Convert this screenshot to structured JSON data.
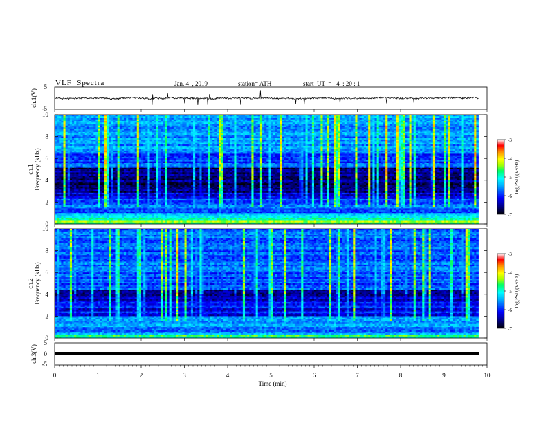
{
  "header": {
    "title": "VLF  Spectra",
    "date": "Jan. 4  , 2019",
    "station": "station= ATH",
    "start": "start  UT  =   4  : 20 : 1"
  },
  "chart_data": [
    {
      "type": "line",
      "name": "ch1-waveform",
      "ylabel": "ch.1(V)",
      "ylim": [
        -5,
        5
      ],
      "yticks": [
        "5",
        "-5"
      ],
      "xlim": [
        0,
        10
      ],
      "values_summary": {
        "baseline": 0,
        "amplitude_approx": 0.6,
        "duration_min": 9.8
      }
    },
    {
      "type": "heatmap",
      "name": "ch1-spectrogram",
      "ylabel": "ch.1\nFrequency  (kHz)",
      "ylabel_line1": "ch.1",
      "ylabel_line2": "Frequency  (kHz)",
      "ylim": [
        0,
        10
      ],
      "yticks": [
        "0",
        "2",
        "4",
        "6",
        "8",
        "10"
      ],
      "xlim": [
        0,
        10
      ],
      "duration_min": 9.8,
      "colorbar": {
        "label": "log(PSD)(V²/Hz)",
        "min": -7,
        "max": -3,
        "ticks": [
          "-3",
          "-4",
          "-5",
          "-6",
          "-7"
        ]
      },
      "seed": 7
    },
    {
      "type": "heatmap",
      "name": "ch2-spectrogram",
      "ylabel_line1": "ch.2",
      "ylabel_line2": "Frequency  (kHz)",
      "ylim": [
        0,
        10
      ],
      "yticks": [
        "0",
        "2",
        "4",
        "6",
        "8",
        "10"
      ],
      "xlim": [
        0,
        10
      ],
      "duration_min": 9.8,
      "colorbar": {
        "label": "log(PSD)(V²/Hz)",
        "min": -7,
        "max": -3,
        "ticks": [
          "-3",
          "-4",
          "-5",
          "-6",
          "-7"
        ]
      },
      "seed": 21
    },
    {
      "type": "line",
      "name": "ch3-waveform",
      "ylabel": "ch.3(V)",
      "ylim": [
        -5,
        5
      ],
      "yticks": [
        "5",
        "0",
        "-5"
      ],
      "xlim": [
        0,
        10
      ],
      "xlabel": "Time  (min)",
      "xticks": [
        "0",
        "1",
        "2",
        "3",
        "4",
        "5",
        "6",
        "7",
        "8",
        "9",
        "10"
      ],
      "values_summary": {
        "baseline": 0,
        "duration_min": 9.8
      }
    }
  ],
  "colors": {
    "scale": [
      "#000000",
      "#000080",
      "#0000ff",
      "#00aaff",
      "#00ffff",
      "#00ff66",
      "#aaff00",
      "#ffff00",
      "#ff8800",
      "#ff0000",
      "#ffffff"
    ]
  }
}
